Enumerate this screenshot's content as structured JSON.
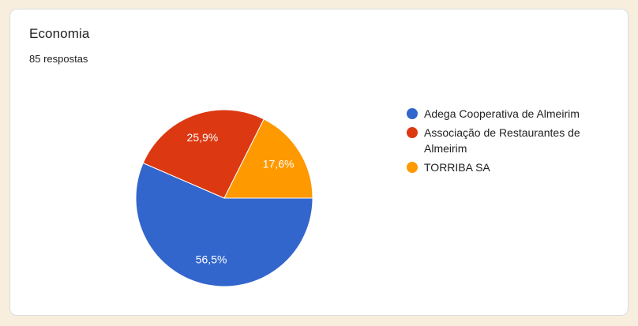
{
  "page": {
    "background": "#f8eedd"
  },
  "card": {
    "background": "#ffffff",
    "border_color": "#dadce0"
  },
  "header": {
    "title": "Economia",
    "responses": "85 respostas"
  },
  "chart_data": {
    "type": "pie",
    "title": "Economia",
    "subtitle": "85 respostas",
    "total_responses": 85,
    "legend_position": "right",
    "start_angle_deg": 0,
    "direction": "clockwise",
    "slice_label_color": "#ffffff",
    "slices": [
      {
        "label": "Adega Cooperativa de Almeirim",
        "value": 56.5,
        "display": "56,5%",
        "color": "#3366cc"
      },
      {
        "label": "Associação de Restaurantes de Almeirim",
        "value": 25.9,
        "display": "25,9%",
        "color": "#dc3912"
      },
      {
        "label": "TORRIBA SA",
        "value": 17.6,
        "display": "17,6%",
        "color": "#ff9900"
      }
    ]
  }
}
